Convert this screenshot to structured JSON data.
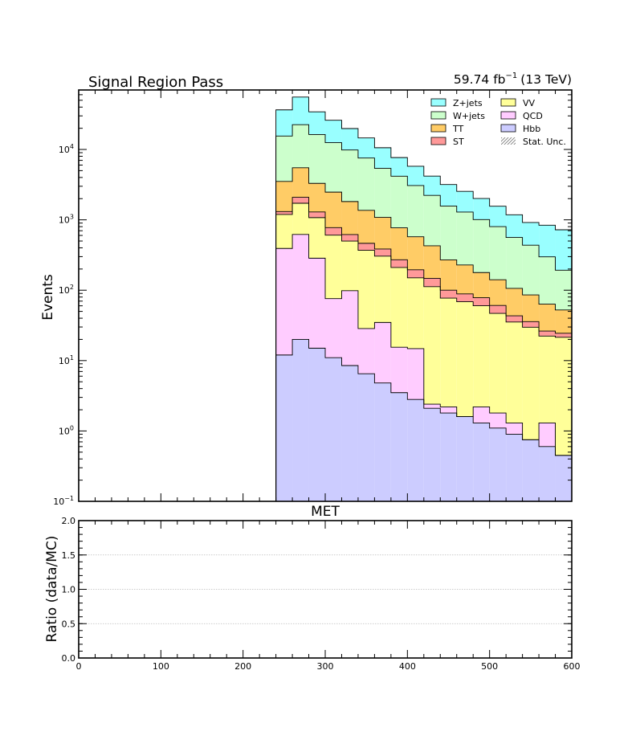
{
  "chart_data": {
    "type": "bar",
    "title": "Signal Region Pass",
    "lumi_value": "59.74 fb",
    "lumi_exponent": "−1",
    "lumi_suffix": "(13 TeV)",
    "upper_panel": {
      "ylabel": "Events",
      "yscale": "log",
      "ylim": [
        0.1,
        70000
      ],
      "ytick_labels": [
        {
          "value": 0.1,
          "base": "10",
          "exp": "−1"
        },
        {
          "value": 1,
          "base": "10",
          "exp": "0"
        },
        {
          "value": 10,
          "base": "10",
          "exp": "1"
        },
        {
          "value": 100,
          "base": "10",
          "exp": "2"
        },
        {
          "value": 1000,
          "base": "10",
          "exp": "3"
        },
        {
          "value": 10000,
          "base": "10",
          "exp": "4"
        }
      ],
      "xlabel": "MET"
    },
    "lower_panel": {
      "ylabel": "Ratio (data/MC)",
      "ylim": [
        0,
        2
      ],
      "yticks": [
        0.0,
        0.5,
        1.0,
        1.5,
        2.0
      ],
      "ytick_labels": [
        "0.0",
        "0.5",
        "1.0",
        "1.5",
        "2.0"
      ],
      "grid": true
    },
    "xlim": [
      0,
      600
    ],
    "xticks": [
      0,
      100,
      200,
      300,
      400,
      500,
      600
    ],
    "xtick_labels": [
      "0",
      "100",
      "200",
      "300",
      "400",
      "500",
      "600"
    ],
    "bin_edges": [
      240,
      260,
      280,
      300,
      320,
      340,
      360,
      380,
      400,
      420,
      440,
      460,
      480,
      500,
      520,
      540,
      560,
      580,
      600
    ],
    "stack_order": [
      "Hbb",
      "QCD",
      "VV",
      "ST",
      "TT",
      "W+jets",
      "Z+jets"
    ],
    "series": [
      {
        "name": "Hbb",
        "color": "#ccccff",
        "values": [
          12,
          20,
          15,
          11,
          8.5,
          6.5,
          4.8,
          3.5,
          2.8,
          2.1,
          1.8,
          1.6,
          1.3,
          1.1,
          0.9,
          0.75,
          0.6,
          0.45
        ]
      },
      {
        "name": "QCD",
        "color": "#ffccff",
        "values": [
          380,
          600,
          270,
          65,
          90,
          22,
          30,
          12,
          12,
          0.3,
          0.4,
          0,
          0.9,
          0.7,
          0.4,
          0,
          0.7,
          0
        ]
      },
      {
        "name": "VV",
        "color": "#ffff99",
        "values": [
          800,
          1100,
          790,
          530,
          400,
          340,
          270,
          195,
          135,
          110,
          75,
          67,
          58,
          45,
          34,
          29,
          21,
          21
        ]
      },
      {
        "name": "ST",
        "color": "#ff9999",
        "values": [
          120,
          370,
          220,
          170,
          120,
          95,
          80,
          60,
          45,
          35,
          23,
          20,
          18,
          14,
          8,
          6,
          4,
          3
        ]
      },
      {
        "name": "TT",
        "color": "#ffcc66",
        "values": [
          2200,
          3400,
          2000,
          1700,
          1200,
          900,
          700,
          500,
          380,
          280,
          170,
          140,
          100,
          80,
          63,
          50,
          37,
          28
        ]
      },
      {
        "name": "W+jets",
        "color": "#ccffcc",
        "values": [
          12000,
          17000,
          13000,
          10000,
          8000,
          6200,
          4300,
          3400,
          2500,
          1800,
          1300,
          1060,
          830,
          660,
          455,
          350,
          235,
          140
        ]
      },
      {
        "name": "Z+jets",
        "color": "#99ffff",
        "values": [
          21000,
          33000,
          18000,
          13500,
          10000,
          7000,
          5200,
          3500,
          2700,
          1950,
          1600,
          1250,
          1000,
          760,
          620,
          480,
          540,
          530
        ]
      }
    ],
    "legend": {
      "placement": "top-right",
      "columns": 2,
      "entries": [
        {
          "label": "Z+jets",
          "color": "#99ffff"
        },
        {
          "label": "VV",
          "color": "#ffff99"
        },
        {
          "label": "W+jets",
          "color": "#ccffcc"
        },
        {
          "label": "QCD",
          "color": "#ffccff"
        },
        {
          "label": "TT",
          "color": "#ffcc66"
        },
        {
          "label": "Hbb",
          "color": "#ccccff"
        },
        {
          "label": "ST",
          "color": "#ff9999"
        },
        {
          "label": "Stat. Unc.",
          "color": "hatched"
        }
      ]
    }
  }
}
